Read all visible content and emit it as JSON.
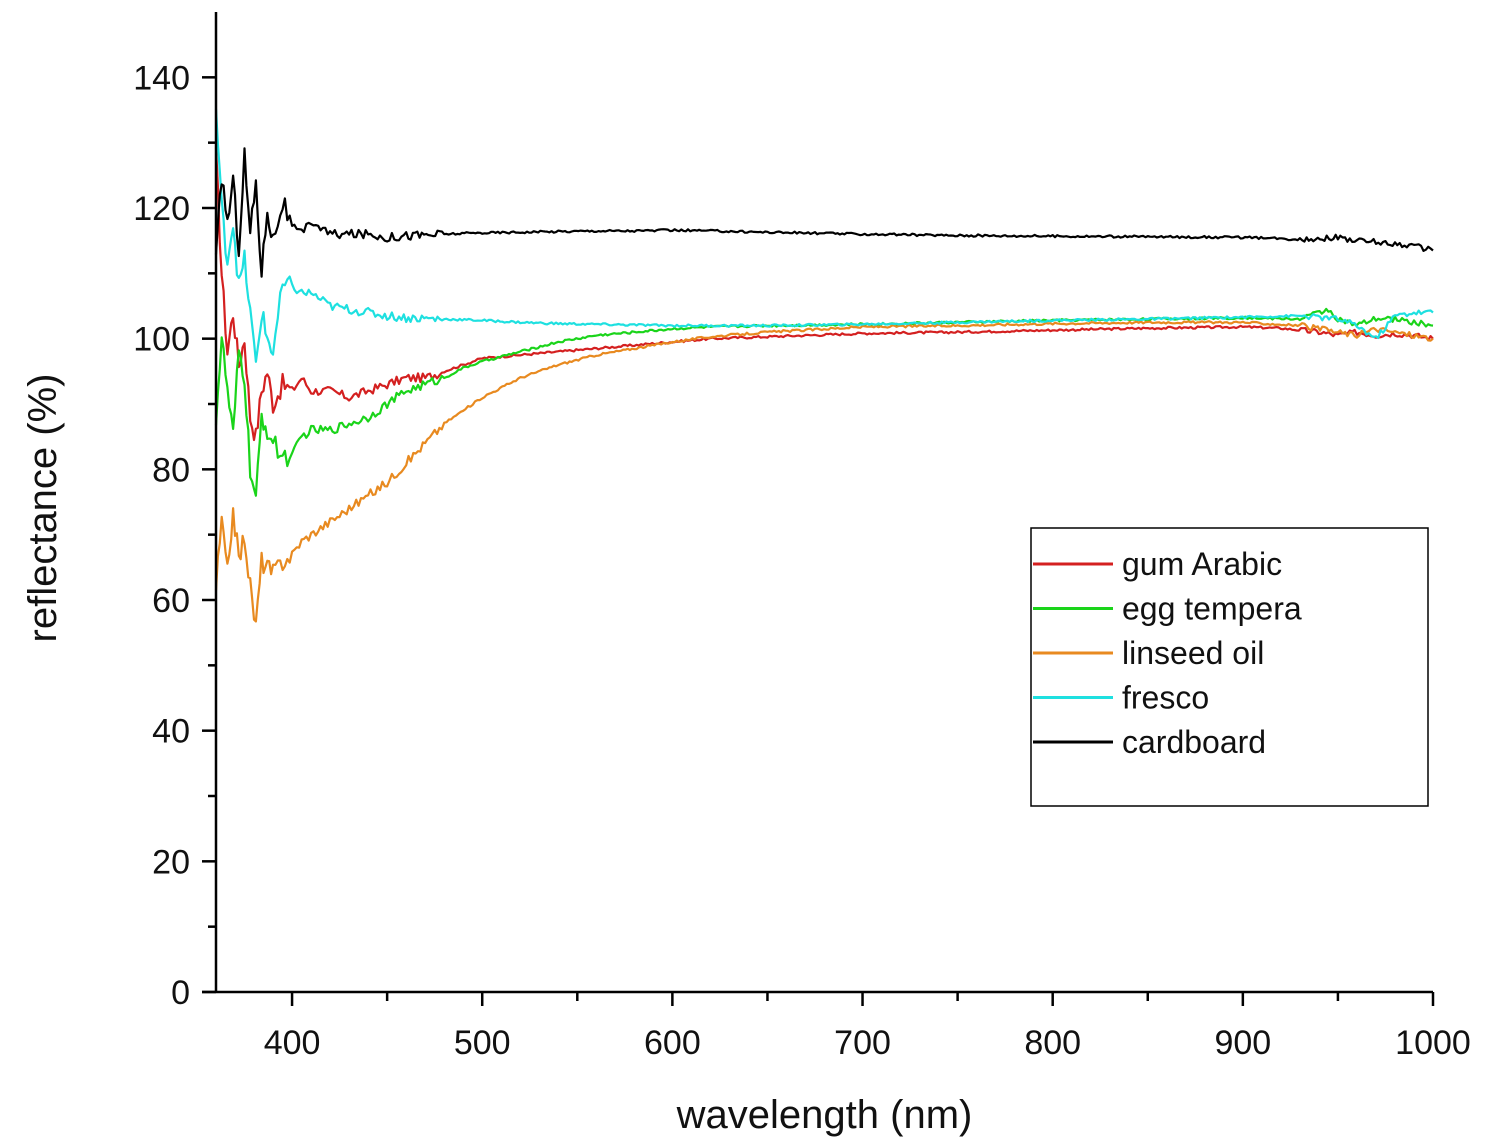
{
  "chart_data": {
    "type": "line",
    "title": "",
    "xlabel": "wavelength (nm)",
    "ylabel": "reflectance (%)",
    "xlim": [
      360,
      1000
    ],
    "ylim": [
      0,
      150
    ],
    "x_ticks": [
      400,
      500,
      600,
      700,
      800,
      900,
      1000
    ],
    "y_ticks": [
      0,
      20,
      40,
      60,
      80,
      100,
      120,
      140
    ],
    "grid": false,
    "legend_position": "right",
    "series": [
      {
        "name": "gum Arabic",
        "color": "#d42020",
        "points": [
          [
            360,
            128
          ],
          [
            363,
            110
          ],
          [
            366,
            98
          ],
          [
            369,
            104
          ],
          [
            372,
            96
          ],
          [
            375,
            100
          ],
          [
            378,
            88
          ],
          [
            381,
            85
          ],
          [
            384,
            92
          ],
          [
            387,
            95
          ],
          [
            390,
            90
          ],
          [
            395,
            93
          ],
          [
            400,
            92
          ],
          [
            405,
            94
          ],
          [
            410,
            92
          ],
          [
            420,
            92
          ],
          [
            430,
            91
          ],
          [
            440,
            92
          ],
          [
            450,
            93
          ],
          [
            460,
            94
          ],
          [
            470,
            94
          ],
          [
            480,
            95
          ],
          [
            490,
            96
          ],
          [
            500,
            97
          ],
          [
            520,
            97.5
          ],
          [
            540,
            98
          ],
          [
            560,
            98.5
          ],
          [
            580,
            99
          ],
          [
            600,
            99.5
          ],
          [
            620,
            100
          ],
          [
            650,
            100.3
          ],
          [
            700,
            100.8
          ],
          [
            750,
            101
          ],
          [
            800,
            101.3
          ],
          [
            850,
            101.6
          ],
          [
            900,
            101.8
          ],
          [
            920,
            101.6
          ],
          [
            940,
            101
          ],
          [
            950,
            100.5
          ],
          [
            960,
            101
          ],
          [
            970,
            100.5
          ],
          [
            980,
            100.8
          ],
          [
            990,
            100.5
          ],
          [
            1000,
            100
          ]
        ]
      },
      {
        "name": "egg tempera",
        "color": "#1ad41a",
        "points": [
          [
            360,
            88
          ],
          [
            363,
            100
          ],
          [
            366,
            92
          ],
          [
            369,
            85
          ],
          [
            372,
            98
          ],
          [
            375,
            94
          ],
          [
            378,
            80
          ],
          [
            381,
            75
          ],
          [
            384,
            88
          ],
          [
            387,
            86
          ],
          [
            390,
            84
          ],
          [
            395,
            82
          ],
          [
            400,
            82
          ],
          [
            405,
            85
          ],
          [
            410,
            86
          ],
          [
            420,
            86
          ],
          [
            430,
            87
          ],
          [
            440,
            88
          ],
          [
            450,
            90
          ],
          [
            460,
            92
          ],
          [
            470,
            93
          ],
          [
            480,
            94
          ],
          [
            490,
            95.5
          ],
          [
            500,
            96.5
          ],
          [
            520,
            98
          ],
          [
            540,
            99.5
          ],
          [
            560,
            100.5
          ],
          [
            580,
            101
          ],
          [
            600,
            101.5
          ],
          [
            620,
            101.8
          ],
          [
            650,
            102
          ],
          [
            700,
            102.2
          ],
          [
            750,
            102.5
          ],
          [
            800,
            102.8
          ],
          [
            850,
            103
          ],
          [
            900,
            103.2
          ],
          [
            930,
            103
          ],
          [
            945,
            104.5
          ],
          [
            950,
            103
          ],
          [
            960,
            102
          ],
          [
            970,
            103
          ],
          [
            980,
            103
          ],
          [
            990,
            102.5
          ],
          [
            1000,
            102
          ]
        ]
      },
      {
        "name": "linseed oil",
        "color": "#e88a20",
        "points": [
          [
            360,
            62
          ],
          [
            363,
            72
          ],
          [
            366,
            64
          ],
          [
            369,
            74
          ],
          [
            372,
            66
          ],
          [
            375,
            70
          ],
          [
            378,
            62
          ],
          [
            381,
            56
          ],
          [
            384,
            66
          ],
          [
            387,
            65
          ],
          [
            390,
            64
          ],
          [
            395,
            66
          ],
          [
            400,
            67
          ],
          [
            405,
            69
          ],
          [
            410,
            70
          ],
          [
            420,
            72
          ],
          [
            430,
            74
          ],
          [
            440,
            76
          ],
          [
            450,
            78
          ],
          [
            460,
            81
          ],
          [
            470,
            84
          ],
          [
            480,
            87
          ],
          [
            490,
            89
          ],
          [
            500,
            91
          ],
          [
            520,
            94
          ],
          [
            540,
            96
          ],
          [
            560,
            97.5
          ],
          [
            580,
            98.5
          ],
          [
            600,
            99.5
          ],
          [
            620,
            100.3
          ],
          [
            650,
            101
          ],
          [
            700,
            101.8
          ],
          [
            750,
            102
          ],
          [
            800,
            102.3
          ],
          [
            850,
            102.5
          ],
          [
            900,
            102.5
          ],
          [
            930,
            102
          ],
          [
            950,
            101
          ],
          [
            960,
            100.5
          ],
          [
            970,
            101.5
          ],
          [
            980,
            101
          ],
          [
            990,
            100.5
          ],
          [
            1000,
            100
          ]
        ]
      },
      {
        "name": "fresco",
        "color": "#1ee0e0",
        "points": [
          [
            360,
            135
          ],
          [
            363,
            120
          ],
          [
            366,
            112
          ],
          [
            369,
            118
          ],
          [
            372,
            108
          ],
          [
            375,
            112
          ],
          [
            378,
            104
          ],
          [
            381,
            96
          ],
          [
            384,
            104
          ],
          [
            387,
            100
          ],
          [
            390,
            98
          ],
          [
            395,
            108
          ],
          [
            400,
            108
          ],
          [
            405,
            107
          ],
          [
            410,
            107
          ],
          [
            420,
            105
          ],
          [
            430,
            104.5
          ],
          [
            440,
            104
          ],
          [
            450,
            103.5
          ],
          [
            460,
            103.2
          ],
          [
            480,
            103
          ],
          [
            500,
            102.8
          ],
          [
            520,
            102.5
          ],
          [
            540,
            102.3
          ],
          [
            560,
            102.2
          ],
          [
            580,
            102.1
          ],
          [
            600,
            102
          ],
          [
            650,
            102
          ],
          [
            700,
            102.2
          ],
          [
            750,
            102.5
          ],
          [
            800,
            102.8
          ],
          [
            850,
            103
          ],
          [
            900,
            103.3
          ],
          [
            930,
            103.5
          ],
          [
            950,
            103
          ],
          [
            960,
            102
          ],
          [
            970,
            100
          ],
          [
            980,
            103.5
          ],
          [
            990,
            104
          ],
          [
            1000,
            104
          ]
        ]
      },
      {
        "name": "cardboard",
        "color": "#000000",
        "points": [
          [
            360,
            112
          ],
          [
            363,
            125
          ],
          [
            366,
            118
          ],
          [
            369,
            124
          ],
          [
            372,
            114
          ],
          [
            375,
            128
          ],
          [
            378,
            116
          ],
          [
            381,
            124
          ],
          [
            384,
            110
          ],
          [
            387,
            120
          ],
          [
            390,
            115
          ],
          [
            395,
            121
          ],
          [
            400,
            117
          ],
          [
            405,
            116
          ],
          [
            410,
            118
          ],
          [
            420,
            116
          ],
          [
            430,
            116
          ],
          [
            440,
            116
          ],
          [
            450,
            115.5
          ],
          [
            460,
            115.8
          ],
          [
            480,
            116
          ],
          [
            500,
            116.2
          ],
          [
            520,
            116.3
          ],
          [
            540,
            116.4
          ],
          [
            560,
            116.5
          ],
          [
            580,
            116.5
          ],
          [
            600,
            116.6
          ],
          [
            620,
            116.5
          ],
          [
            650,
            116.3
          ],
          [
            700,
            116
          ],
          [
            750,
            115.8
          ],
          [
            800,
            115.7
          ],
          [
            850,
            115.6
          ],
          [
            900,
            115.5
          ],
          [
            930,
            115.2
          ],
          [
            950,
            115.5
          ],
          [
            960,
            115
          ],
          [
            970,
            114.8
          ],
          [
            980,
            114.5
          ],
          [
            990,
            114.2
          ],
          [
            1000,
            113.5
          ]
        ]
      }
    ]
  }
}
